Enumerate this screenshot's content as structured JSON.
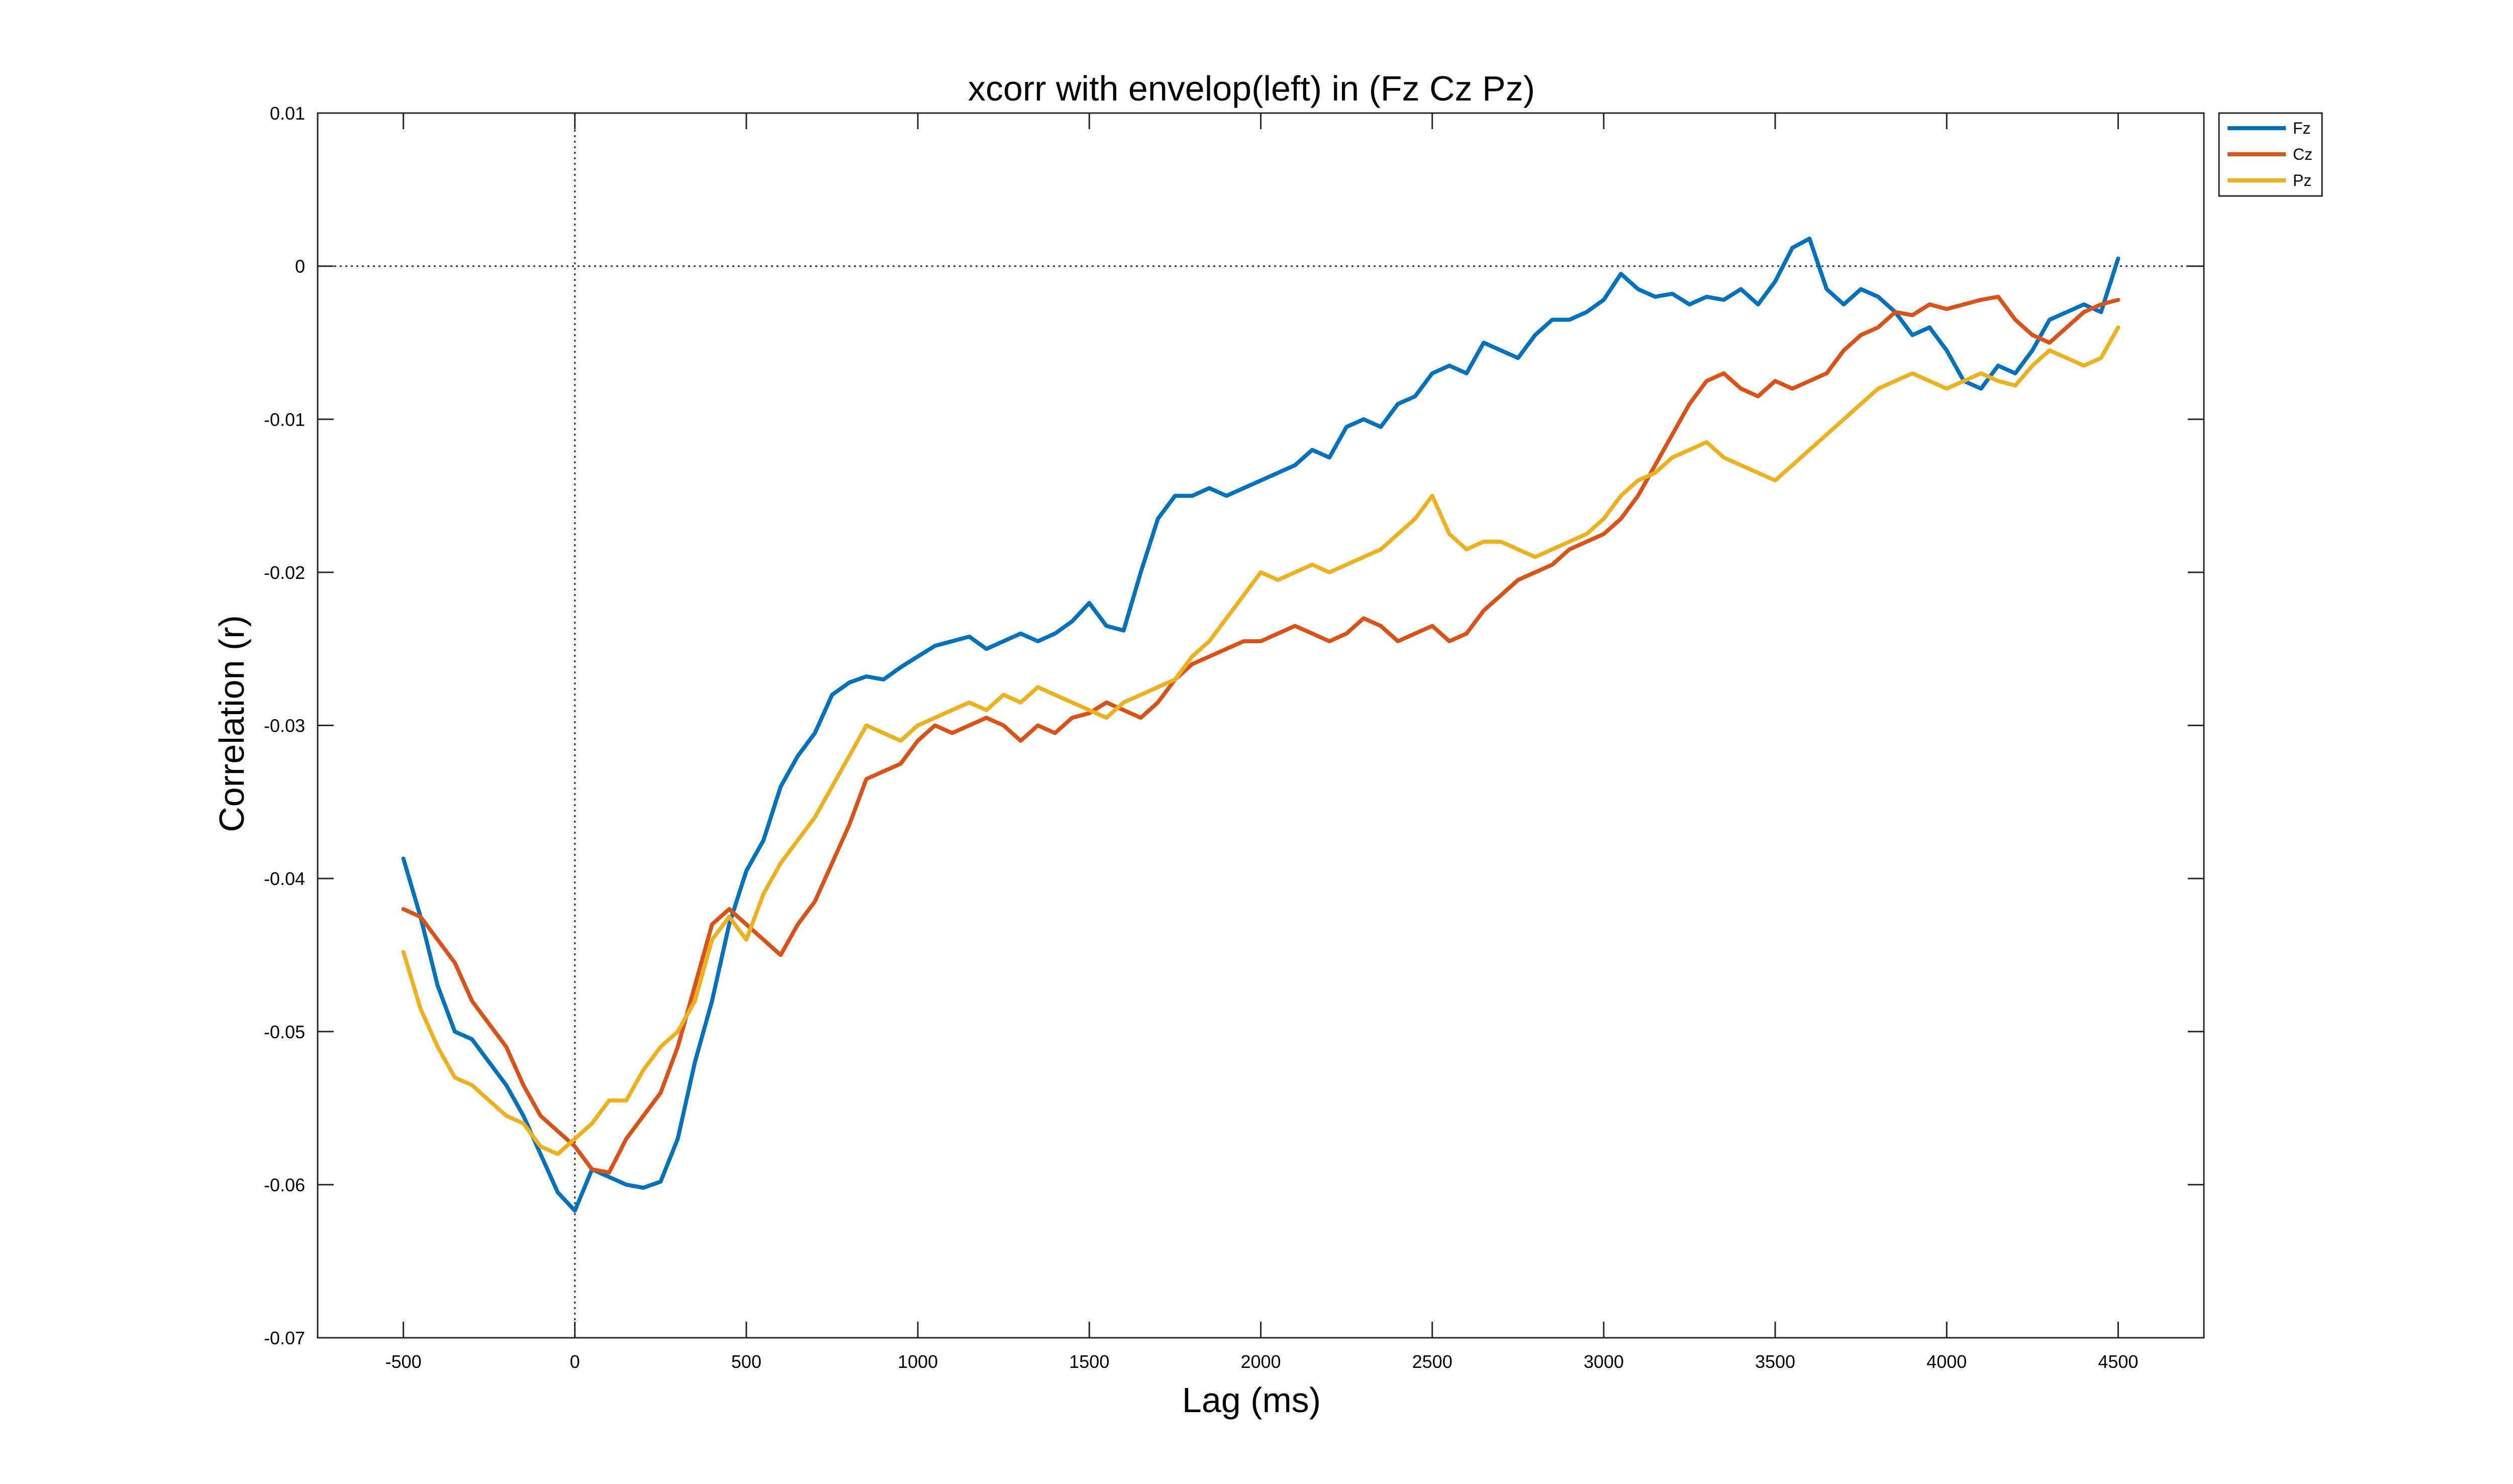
{
  "chart_data": {
    "type": "line",
    "title": "xcorr with envelop(left) in (Fz Cz Pz)",
    "xlabel": "Lag (ms)",
    "ylabel": "Correlation (r)",
    "xlim": [
      -750,
      4750
    ],
    "ylim": [
      -0.07,
      0.01
    ],
    "xticks": [
      -500,
      0,
      500,
      1000,
      1500,
      2000,
      2500,
      3000,
      3500,
      4000,
      4500
    ],
    "yticks": [
      0.01,
      0,
      -0.01,
      -0.02,
      -0.03,
      -0.04,
      -0.05,
      -0.06,
      -0.07
    ],
    "xtick_labels": [
      "-500",
      "0",
      "500",
      "1000",
      "1500",
      "2000",
      "2500",
      "3000",
      "3500",
      "4000",
      "4500"
    ],
    "ytick_labels": [
      "0.01",
      "0",
      "-0.01",
      "-0.02",
      "-0.03",
      "-0.04",
      "-0.05",
      "-0.06",
      "-0.07"
    ],
    "grid": false,
    "reference_lines": [
      {
        "axis": "y",
        "value": 0,
        "style": "dotted"
      },
      {
        "axis": "x",
        "value": 0,
        "style": "dotted"
      }
    ],
    "legend_position": "outside-top-right",
    "series": [
      {
        "name": "Fz",
        "color": "#0072BD",
        "x": [
          -500,
          -450,
          -400,
          -350,
          -300,
          -250,
          -200,
          -150,
          -100,
          -50,
          0,
          50,
          100,
          150,
          200,
          250,
          300,
          350,
          400,
          450,
          500,
          550,
          600,
          650,
          700,
          750,
          800,
          850,
          900,
          950,
          1000,
          1050,
          1100,
          1150,
          1200,
          1250,
          1300,
          1350,
          1400,
          1450,
          1500,
          1550,
          1600,
          1650,
          1700,
          1750,
          1800,
          1850,
          1900,
          1950,
          2000,
          2050,
          2100,
          2150,
          2200,
          2250,
          2300,
          2350,
          2400,
          2450,
          2500,
          2550,
          2600,
          2650,
          2700,
          2750,
          2800,
          2850,
          2900,
          2950,
          3000,
          3050,
          3100,
          3150,
          3200,
          3250,
          3300,
          3350,
          3400,
          3450,
          3500,
          3550,
          3600,
          3650,
          3700,
          3750,
          3800,
          3850,
          3900,
          3950,
          4000,
          4050,
          4100,
          4150,
          4200,
          4250,
          4300,
          4350,
          4400,
          4450,
          4500
        ],
        "values": [
          -0.0387,
          -0.0425,
          -0.047,
          -0.05,
          -0.0505,
          -0.052,
          -0.0535,
          -0.0555,
          -0.058,
          -0.0605,
          -0.0617,
          -0.059,
          -0.0595,
          -0.06,
          -0.0602,
          -0.0598,
          -0.057,
          -0.052,
          -0.048,
          -0.043,
          -0.0395,
          -0.0375,
          -0.034,
          -0.032,
          -0.0305,
          -0.028,
          -0.0272,
          -0.0268,
          -0.027,
          -0.0262,
          -0.0255,
          -0.0248,
          -0.0245,
          -0.0242,
          -0.025,
          -0.0245,
          -0.024,
          -0.0245,
          -0.024,
          -0.0232,
          -0.022,
          -0.0235,
          -0.0238,
          -0.02,
          -0.0165,
          -0.015,
          -0.015,
          -0.0145,
          -0.015,
          -0.0145,
          -0.014,
          -0.0135,
          -0.013,
          -0.012,
          -0.0125,
          -0.0105,
          -0.01,
          -0.0105,
          -0.009,
          -0.0085,
          -0.007,
          -0.0065,
          -0.007,
          -0.005,
          -0.0055,
          -0.006,
          -0.0045,
          -0.0035,
          -0.0035,
          -0.003,
          -0.0022,
          -0.0005,
          -0.0015,
          -0.002,
          -0.0018,
          -0.0025,
          -0.002,
          -0.0022,
          -0.0015,
          -0.0025,
          -0.001,
          0.0012,
          0.0018,
          -0.0015,
          -0.0025,
          -0.0015,
          -0.002,
          -0.003,
          -0.0045,
          -0.004,
          -0.0055,
          -0.0075,
          -0.008,
          -0.0065,
          -0.007,
          -0.0055,
          -0.0035,
          -0.003,
          -0.0025,
          -0.003,
          0.0005
        ]
      },
      {
        "name": "Cz",
        "color": "#D95319",
        "x": [
          -500,
          -450,
          -400,
          -350,
          -300,
          -250,
          -200,
          -150,
          -100,
          -50,
          0,
          50,
          100,
          150,
          200,
          250,
          300,
          350,
          400,
          450,
          500,
          550,
          600,
          650,
          700,
          750,
          800,
          850,
          900,
          950,
          1000,
          1050,
          1100,
          1150,
          1200,
          1250,
          1300,
          1350,
          1400,
          1450,
          1500,
          1550,
          1600,
          1650,
          1700,
          1750,
          1800,
          1850,
          1900,
          1950,
          2000,
          2050,
          2100,
          2150,
          2200,
          2250,
          2300,
          2350,
          2400,
          2450,
          2500,
          2550,
          2600,
          2650,
          2700,
          2750,
          2800,
          2850,
          2900,
          2950,
          3000,
          3050,
          3100,
          3150,
          3200,
          3250,
          3300,
          3350,
          3400,
          3450,
          3500,
          3550,
          3600,
          3650,
          3700,
          3750,
          3800,
          3850,
          3900,
          3950,
          4000,
          4050,
          4100,
          4150,
          4200,
          4250,
          4300,
          4350,
          4400,
          4450,
          4500
        ],
        "values": [
          -0.042,
          -0.0425,
          -0.044,
          -0.0455,
          -0.048,
          -0.0495,
          -0.051,
          -0.0535,
          -0.0555,
          -0.0565,
          -0.0575,
          -0.059,
          -0.0592,
          -0.057,
          -0.0555,
          -0.054,
          -0.051,
          -0.047,
          -0.043,
          -0.042,
          -0.043,
          -0.044,
          -0.045,
          -0.043,
          -0.0415,
          -0.039,
          -0.0365,
          -0.0335,
          -0.033,
          -0.0325,
          -0.031,
          -0.03,
          -0.0305,
          -0.03,
          -0.0295,
          -0.03,
          -0.031,
          -0.03,
          -0.0305,
          -0.0295,
          -0.0292,
          -0.0285,
          -0.029,
          -0.0295,
          -0.0285,
          -0.027,
          -0.026,
          -0.0255,
          -0.025,
          -0.0245,
          -0.0245,
          -0.024,
          -0.0235,
          -0.024,
          -0.0245,
          -0.024,
          -0.023,
          -0.0235,
          -0.0245,
          -0.024,
          -0.0235,
          -0.0245,
          -0.024,
          -0.0225,
          -0.0215,
          -0.0205,
          -0.02,
          -0.0195,
          -0.0185,
          -0.018,
          -0.0175,
          -0.0165,
          -0.015,
          -0.013,
          -0.011,
          -0.009,
          -0.0075,
          -0.007,
          -0.008,
          -0.0085,
          -0.0075,
          -0.008,
          -0.0075,
          -0.007,
          -0.0055,
          -0.0045,
          -0.004,
          -0.003,
          -0.0032,
          -0.0025,
          -0.0028,
          -0.0025,
          -0.0022,
          -0.002,
          -0.0035,
          -0.0045,
          -0.005,
          -0.004,
          -0.003,
          -0.0025,
          -0.0022
        ]
      },
      {
        "name": "Pz",
        "color": "#EDB120",
        "x": [
          -500,
          -450,
          -400,
          -350,
          -300,
          -250,
          -200,
          -150,
          -100,
          -50,
          0,
          50,
          100,
          150,
          200,
          250,
          300,
          350,
          400,
          450,
          500,
          550,
          600,
          650,
          700,
          750,
          800,
          850,
          900,
          950,
          1000,
          1050,
          1100,
          1150,
          1200,
          1250,
          1300,
          1350,
          1400,
          1450,
          1500,
          1550,
          1600,
          1650,
          1700,
          1750,
          1800,
          1850,
          1900,
          1950,
          2000,
          2050,
          2100,
          2150,
          2200,
          2250,
          2300,
          2350,
          2400,
          2450,
          2500,
          2550,
          2600,
          2650,
          2700,
          2750,
          2800,
          2850,
          2900,
          2950,
          3000,
          3050,
          3100,
          3150,
          3200,
          3250,
          3300,
          3350,
          3400,
          3450,
          3500,
          3550,
          3600,
          3650,
          3700,
          3750,
          3800,
          3850,
          3900,
          3950,
          4000,
          4050,
          4100,
          4150,
          4200,
          4250,
          4300,
          4350,
          4400,
          4450,
          4500
        ],
        "values": [
          -0.0448,
          -0.0485,
          -0.051,
          -0.053,
          -0.0535,
          -0.0545,
          -0.0555,
          -0.056,
          -0.0575,
          -0.058,
          -0.057,
          -0.056,
          -0.0545,
          -0.0545,
          -0.0525,
          -0.051,
          -0.05,
          -0.048,
          -0.044,
          -0.0425,
          -0.044,
          -0.041,
          -0.039,
          -0.0375,
          -0.036,
          -0.034,
          -0.032,
          -0.03,
          -0.0305,
          -0.031,
          -0.03,
          -0.0295,
          -0.029,
          -0.0285,
          -0.029,
          -0.028,
          -0.0285,
          -0.0275,
          -0.028,
          -0.0285,
          -0.029,
          -0.0295,
          -0.0285,
          -0.028,
          -0.0275,
          -0.027,
          -0.0255,
          -0.0245,
          -0.023,
          -0.0215,
          -0.02,
          -0.0205,
          -0.02,
          -0.0195,
          -0.02,
          -0.0195,
          -0.019,
          -0.0185,
          -0.0175,
          -0.0165,
          -0.015,
          -0.0175,
          -0.0185,
          -0.018,
          -0.018,
          -0.0185,
          -0.019,
          -0.0185,
          -0.018,
          -0.0175,
          -0.0165,
          -0.015,
          -0.014,
          -0.0135,
          -0.0125,
          -0.012,
          -0.0115,
          -0.0125,
          -0.013,
          -0.0135,
          -0.014,
          -0.013,
          -0.012,
          -0.011,
          -0.01,
          -0.009,
          -0.008,
          -0.0075,
          -0.007,
          -0.0075,
          -0.008,
          -0.0075,
          -0.007,
          -0.0075,
          -0.0078,
          -0.0065,
          -0.0055,
          -0.006,
          -0.0065,
          -0.006,
          -0.004
        ]
      }
    ]
  }
}
